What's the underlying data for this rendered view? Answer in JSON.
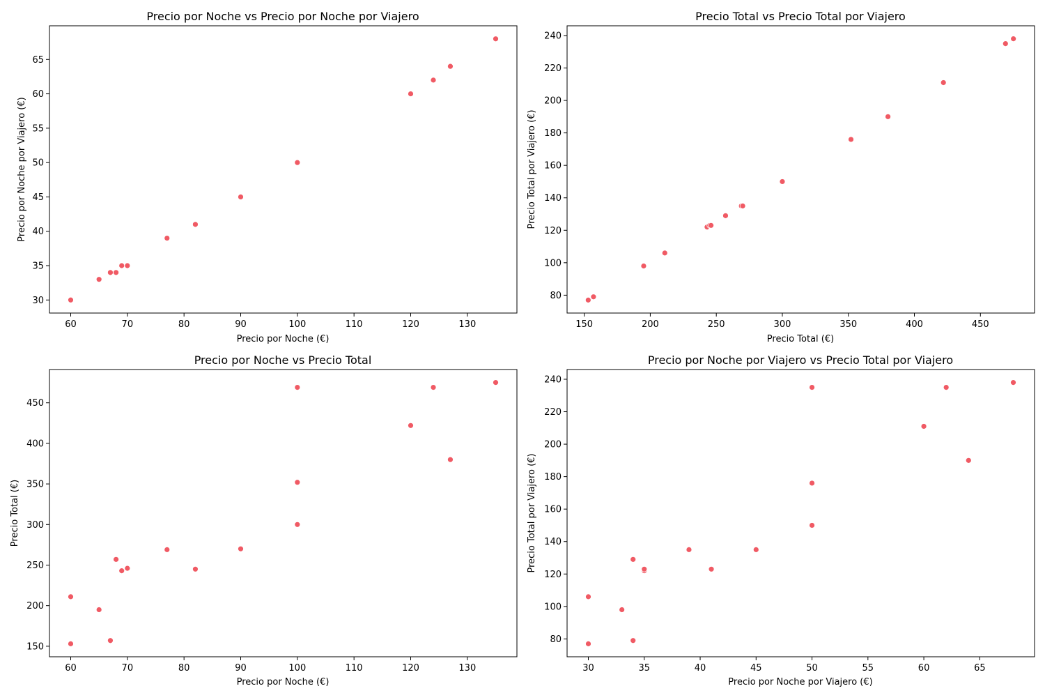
{
  "chart_data": [
    {
      "type": "scatter",
      "title": "Precio por Noche vs Precio por Noche por Viajero",
      "xlabel": "Precio por Noche (€)",
      "ylabel": "Precio por Noche por Viajero (€)",
      "xlim": [
        56.25,
        138.75
      ],
      "ylim": [
        28.1,
        69.9
      ],
      "xticks": [
        60,
        70,
        80,
        90,
        100,
        110,
        120,
        130
      ],
      "yticks": [
        30,
        35,
        40,
        45,
        50,
        55,
        60,
        65
      ],
      "grid": false,
      "legend": "none",
      "color": "#f05a64",
      "series": [
        {
          "x": [
            60,
            65,
            67,
            68,
            69,
            70,
            77,
            82,
            90,
            100,
            120,
            124,
            127,
            135
          ],
          "y": [
            30,
            33,
            34,
            34,
            35,
            35,
            39,
            41,
            45,
            50,
            60,
            62,
            64,
            68
          ]
        }
      ]
    },
    {
      "type": "scatter",
      "title": "Precio Total vs Precio Total por Viajero",
      "xlabel": "Precio Total (€)",
      "ylabel": "Precio Total por Viajero (€)",
      "xlim": [
        137,
        491
      ],
      "ylim": [
        69,
        246
      ],
      "xticks": [
        150,
        200,
        250,
        300,
        350,
        400,
        450
      ],
      "yticks": [
        80,
        100,
        120,
        140,
        160,
        180,
        200,
        220,
        240
      ],
      "grid": false,
      "legend": "none",
      "color": "#f05a64",
      "series": [
        {
          "x": [
            153,
            157,
            195,
            211,
            243,
            245,
            246,
            257,
            269,
            270,
            300,
            352,
            380,
            422,
            469,
            475
          ],
          "y": [
            77,
            79,
            98,
            106,
            122,
            123,
            123,
            129,
            135,
            135,
            150,
            176,
            190,
            211,
            235,
            238
          ]
        }
      ]
    },
    {
      "type": "scatter",
      "title": "Precio por Noche vs Precio Total",
      "xlabel": "Precio por Noche (€)",
      "ylabel": "Precio Total (€)",
      "xlim": [
        56.25,
        138.75
      ],
      "ylim": [
        137,
        491
      ],
      "xticks": [
        60,
        70,
        80,
        90,
        100,
        110,
        120,
        130
      ],
      "yticks": [
        150,
        200,
        250,
        300,
        350,
        400,
        450
      ],
      "grid": false,
      "legend": "none",
      "color": "#f05a64",
      "series": [
        {
          "x": [
            60,
            60,
            65,
            67,
            68,
            69,
            70,
            77,
            82,
            90,
            100,
            100,
            100,
            120,
            124,
            127,
            135
          ],
          "y": [
            153,
            211,
            195,
            157,
            257,
            243,
            246,
            269,
            245,
            270,
            469,
            352,
            300,
            422,
            469,
            380,
            475
          ]
        }
      ]
    },
    {
      "type": "scatter",
      "title": "Precio por Noche por Viajero vs Precio Total por Viajero",
      "xlabel": "Precio por Noche por Viajero (€)",
      "ylabel": "Precio Total por Viajero (€)",
      "xlim": [
        28.1,
        69.9
      ],
      "ylim": [
        69,
        246
      ],
      "xticks": [
        30,
        35,
        40,
        45,
        50,
        55,
        60,
        65
      ],
      "yticks": [
        80,
        100,
        120,
        140,
        160,
        180,
        200,
        220,
        240
      ],
      "grid": false,
      "legend": "none",
      "color": "#f05a64",
      "series": [
        {
          "x": [
            30,
            30,
            33,
            34,
            34,
            35,
            35,
            39,
            41,
            45,
            50,
            50,
            50,
            60,
            62,
            64,
            68
          ],
          "y": [
            77,
            106,
            98,
            79,
            129,
            122,
            123,
            135,
            123,
            135,
            235,
            176,
            150,
            211,
            235,
            190,
            238
          ]
        }
      ]
    }
  ]
}
